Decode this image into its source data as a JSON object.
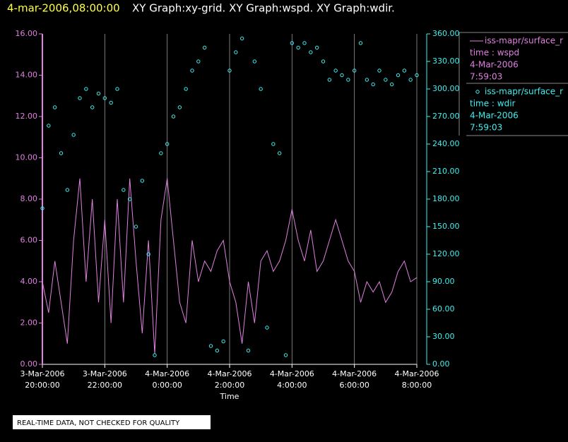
{
  "header": {
    "datetime": "4-mar-2006,08:00:00",
    "title": "XY Graph:xy-grid.  XY Graph:wspd.  XY Graph:wdir."
  },
  "footer": {
    "note": "REAL-TIME DATA, NOT CHECKED FOR QUALITY"
  },
  "legend": [
    {
      "name": "iss-mapr/surface_r",
      "lines": [
        "time : wspd",
        "4-Mar-2006",
        "7:59:03"
      ]
    },
    {
      "name": "iss-mapr/surface_r",
      "lines": [
        "time : wdir",
        "4-Mar-2006",
        "7:59:03"
      ]
    }
  ],
  "chart_data": {
    "type": "combo",
    "xlabel": "Time",
    "grid": true,
    "xlim": [
      "2006-03-03 20:00",
      "2006-03-04 08:00"
    ],
    "xticks": [
      {
        "value": "2006-03-03 20:00",
        "label": [
          "3-Mar-2006",
          "20:00:00"
        ]
      },
      {
        "value": "2006-03-03 22:00",
        "label": [
          "3-Mar-2006",
          "22:00:00"
        ]
      },
      {
        "value": "2006-03-04 00:00",
        "label": [
          "4-Mar-2006",
          "0:00:00"
        ]
      },
      {
        "value": "2006-03-04 02:00",
        "label": [
          "4-Mar-2006",
          "2:00:00"
        ]
      },
      {
        "value": "2006-03-04 04:00",
        "label": [
          "4-Mar-2006",
          "4:00:00"
        ]
      },
      {
        "value": "2006-03-04 06:00",
        "label": [
          "4-Mar-2006",
          "6:00:00"
        ]
      },
      {
        "value": "2006-03-04 08:00",
        "label": [
          "4-Mar-2006",
          "8:00:00"
        ]
      }
    ],
    "ylim": [
      0,
      16
    ],
    "yticks": [
      {
        "value": 0,
        "label": "0.00"
      },
      {
        "value": 2,
        "label": "2.00"
      },
      {
        "value": 4,
        "label": "4.00"
      },
      {
        "value": 6,
        "label": "6.00"
      },
      {
        "value": 8,
        "label": "8.00"
      },
      {
        "value": 10,
        "label": "10.00"
      },
      {
        "value": 12,
        "label": "12.00"
      },
      {
        "value": 14,
        "label": "14.00"
      },
      {
        "value": 16,
        "label": "16.00"
      }
    ],
    "y2lim": [
      0,
      360
    ],
    "y2ticks": [
      {
        "value": 0,
        "label": "0.00"
      },
      {
        "value": 30,
        "label": "30.00"
      },
      {
        "value": 60,
        "label": "60.00"
      },
      {
        "value": 90,
        "label": "90.00"
      },
      {
        "value": 120,
        "label": "120.00"
      },
      {
        "value": 150,
        "label": "150.00"
      },
      {
        "value": 180,
        "label": "180.00"
      },
      {
        "value": 210,
        "label": "210.00"
      },
      {
        "value": 240,
        "label": "240.00"
      },
      {
        "value": 270,
        "label": "270.00"
      },
      {
        "value": 300,
        "label": "300.00"
      },
      {
        "value": 330,
        "label": "330.00"
      },
      {
        "value": 360,
        "label": "360.00"
      }
    ],
    "x": [
      "2006-03-03 20:00",
      "2006-03-03 20:12",
      "2006-03-03 20:24",
      "2006-03-03 20:36",
      "2006-03-03 20:48",
      "2006-03-03 21:00",
      "2006-03-03 21:12",
      "2006-03-03 21:24",
      "2006-03-03 21:36",
      "2006-03-03 21:48",
      "2006-03-03 22:00",
      "2006-03-03 22:12",
      "2006-03-03 22:24",
      "2006-03-03 22:36",
      "2006-03-03 22:48",
      "2006-03-03 23:00",
      "2006-03-03 23:12",
      "2006-03-03 23:24",
      "2006-03-03 23:36",
      "2006-03-03 23:48",
      "2006-03-04 00:00",
      "2006-03-04 00:12",
      "2006-03-04 00:24",
      "2006-03-04 00:36",
      "2006-03-04 00:48",
      "2006-03-04 01:00",
      "2006-03-04 01:12",
      "2006-03-04 01:24",
      "2006-03-04 01:36",
      "2006-03-04 01:48",
      "2006-03-04 02:00",
      "2006-03-04 02:12",
      "2006-03-04 02:24",
      "2006-03-04 02:36",
      "2006-03-04 02:48",
      "2006-03-04 03:00",
      "2006-03-04 03:12",
      "2006-03-04 03:24",
      "2006-03-04 03:36",
      "2006-03-04 03:48",
      "2006-03-04 04:00",
      "2006-03-04 04:12",
      "2006-03-04 04:24",
      "2006-03-04 04:36",
      "2006-03-04 04:48",
      "2006-03-04 05:00",
      "2006-03-04 05:12",
      "2006-03-04 05:24",
      "2006-03-04 05:36",
      "2006-03-04 05:48",
      "2006-03-04 06:00",
      "2006-03-04 06:12",
      "2006-03-04 06:24",
      "2006-03-04 06:36",
      "2006-03-04 06:48",
      "2006-03-04 07:00",
      "2006-03-04 07:12",
      "2006-03-04 07:24",
      "2006-03-04 07:36",
      "2006-03-04 07:48",
      "2006-03-04 08:00"
    ],
    "series": [
      {
        "name": "wspd",
        "type": "line",
        "color": "#e080e0",
        "values": [
          4,
          2.5,
          5,
          3,
          1,
          6,
          9,
          4,
          8,
          3,
          7,
          2,
          8,
          3,
          9,
          5,
          1.5,
          6,
          0.5,
          7,
          9,
          6,
          3,
          2,
          6,
          4,
          5,
          4.5,
          5.5,
          6,
          4,
          3,
          1,
          4,
          2,
          5,
          5.5,
          4.5,
          5,
          6,
          7.5,
          6,
          5,
          6.5,
          4.5,
          5,
          6,
          7,
          6,
          5,
          4.5,
          3,
          4,
          3.5,
          4,
          3,
          3.5,
          4.5,
          5,
          4,
          4.2
        ]
      },
      {
        "name": "wdir",
        "type": "scatter",
        "axis": "y2",
        "color": "#40f0f0",
        "values": [
          170,
          260,
          280,
          230,
          190,
          250,
          290,
          300,
          280,
          295,
          290,
          285,
          300,
          190,
          180,
          150,
          200,
          120,
          10,
          230,
          240,
          270,
          280,
          300,
          320,
          330,
          345,
          20,
          15,
          25,
          320,
          340,
          355,
          15,
          330,
          300,
          40,
          240,
          230,
          10,
          350,
          345,
          350,
          340,
          345,
          330,
          310,
          320,
          315,
          310,
          320,
          350,
          310,
          305,
          320,
          310,
          305,
          315,
          320,
          310,
          315
        ]
      }
    ]
  }
}
